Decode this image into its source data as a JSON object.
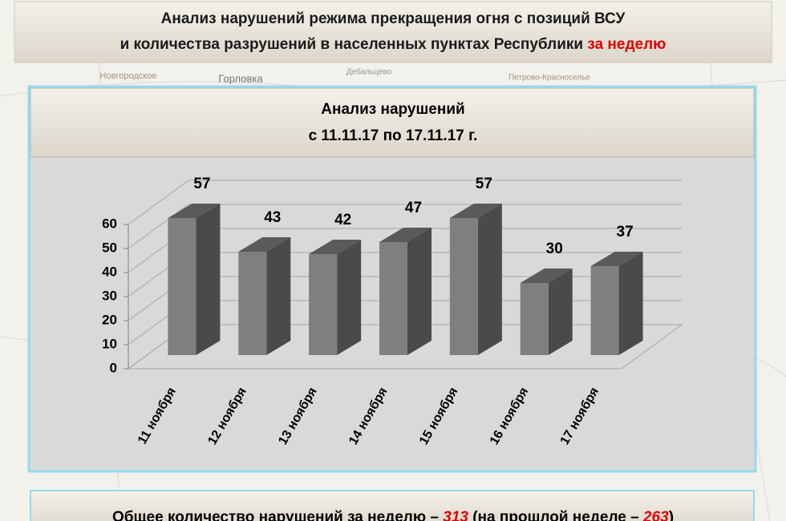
{
  "header": {
    "line1": "Анализ нарушений режима прекращения огня с позиций ВСУ",
    "line2": "и количества разрушений в населенных пунктах Республики",
    "line2_highlight": "за неделю"
  },
  "map_labels": [
    "Новгородское",
    "Горловка",
    "Дебальцево",
    "Петрово-Красноселье"
  ],
  "chart_data": {
    "type": "bar3d",
    "title": "Анализ нарушений",
    "subtitle": "с 11.11.17 по 17.11.17 г.",
    "categories": [
      "11 ноября",
      "12 ноября",
      "13 ноября",
      "14 ноября",
      "15 ноября",
      "16 ноября",
      "17 ноября"
    ],
    "values": [
      57,
      43,
      42,
      47,
      57,
      30,
      37
    ],
    "color": "#7f7f7f",
    "ylim": [
      0,
      60
    ],
    "yticks": [
      0,
      10,
      20,
      30,
      40,
      50,
      60
    ],
    "grid": true
  },
  "footer": {
    "text_before": "Общее количество нарушений за неделю –",
    "this_week": 313,
    "text_middle": "(на прошлой неделе –",
    "last_week": 263,
    "text_after": ")"
  }
}
